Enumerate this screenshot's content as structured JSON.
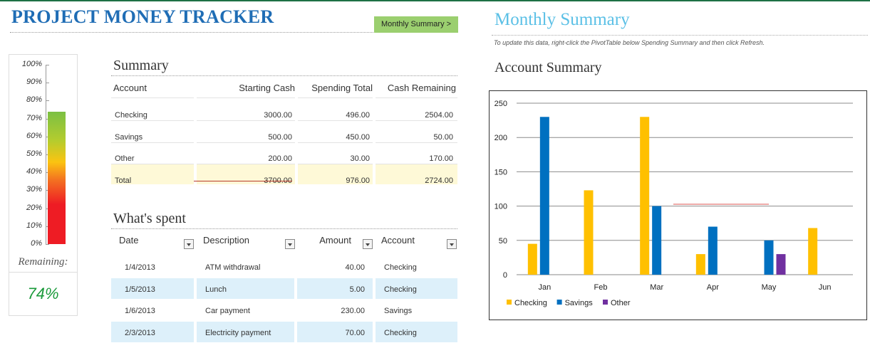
{
  "header": {
    "title": "PROJECT MONEY TRACKER",
    "nav_button_label": "Monthly Summary >"
  },
  "thermometer": {
    "ticks": [
      "100%",
      "90%",
      "80%",
      "70%",
      "60%",
      "50%",
      "40%",
      "30%",
      "20%",
      "10%",
      "0%"
    ],
    "remaining_label": "Remaining:",
    "remaining_value": "74%",
    "fill_fraction": 0.74
  },
  "summary": {
    "title": "Summary",
    "columns": [
      "Account",
      "Starting Cash",
      "Spending Total",
      "Cash Remaining"
    ],
    "rows": [
      [
        "Checking",
        "3000.00",
        "496.00",
        "2504.00"
      ],
      [
        "Savings",
        "500.00",
        "450.00",
        "50.00"
      ],
      [
        "Other",
        "200.00",
        "30.00",
        "170.00"
      ]
    ],
    "total": [
      "Total",
      "3700.00",
      "976.00",
      "2724.00"
    ]
  },
  "spent": {
    "title": "What's spent",
    "columns": [
      "Date",
      "Description",
      "Amount",
      "Account"
    ],
    "rows": [
      [
        "1/4/2013",
        "ATM withdrawal",
        "40.00",
        "Checking"
      ],
      [
        "1/5/2013",
        "Lunch",
        "5.00",
        "Checking"
      ],
      [
        "1/6/2013",
        "Car payment",
        "230.00",
        "Savings"
      ],
      [
        "2/3/2013",
        "Electricity payment",
        "70.00",
        "Checking"
      ]
    ]
  },
  "monthly": {
    "title": "Monthly Summary",
    "note": "To update this data, right-click the PivotTable below Spending Summary and then click Refresh.",
    "account_summary_title": "Account Summary"
  },
  "chart_data": {
    "type": "bar",
    "categories": [
      "Jan",
      "Feb",
      "Mar",
      "Apr",
      "May",
      "Jun"
    ],
    "series": [
      {
        "name": "Checking",
        "color": "#ffc000",
        "values": [
          45,
          123,
          230,
          30,
          null,
          68
        ]
      },
      {
        "name": "Savings",
        "color": "#0070c0",
        "values": [
          230,
          null,
          100,
          70,
          50,
          null
        ]
      },
      {
        "name": "Other",
        "color": "#7030a0",
        "values": [
          null,
          null,
          null,
          null,
          30,
          null
        ]
      }
    ],
    "yticks": [
      0,
      50,
      100,
      150,
      200,
      250
    ],
    "ylim": [
      0,
      250
    ],
    "grid": true,
    "legend_position": "bottom-left"
  }
}
